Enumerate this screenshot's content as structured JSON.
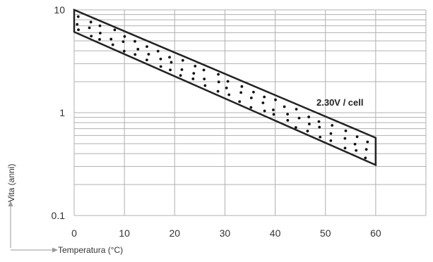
{
  "chart_data": {
    "type": "area",
    "title": "",
    "xlabel": "Temperatura (°C)",
    "ylabel": "Vita (anni)",
    "xlim": [
      0,
      70
    ],
    "ylim": [
      0.1,
      10
    ],
    "y_scale": "log",
    "grid": true,
    "x_ticks": [
      "0",
      "10",
      "20",
      "30",
      "40",
      "50",
      "60"
    ],
    "y_ticks": [
      "0.1",
      "1",
      "10"
    ],
    "x_tick_values": [
      0,
      10,
      20,
      30,
      40,
      50,
      60
    ],
    "y_tick_values": [
      0.1,
      1,
      10
    ],
    "annotation": "2.30V / cell",
    "band": {
      "x": [
        0,
        60
      ],
      "upper": [
        10,
        0.57
      ],
      "lower": [
        6.1,
        0.31
      ]
    },
    "colors": {
      "band_outline": "#222222",
      "grid": "#b0b0b0",
      "axis_arrow": "#9a9a9a",
      "dots": "#111111"
    }
  }
}
